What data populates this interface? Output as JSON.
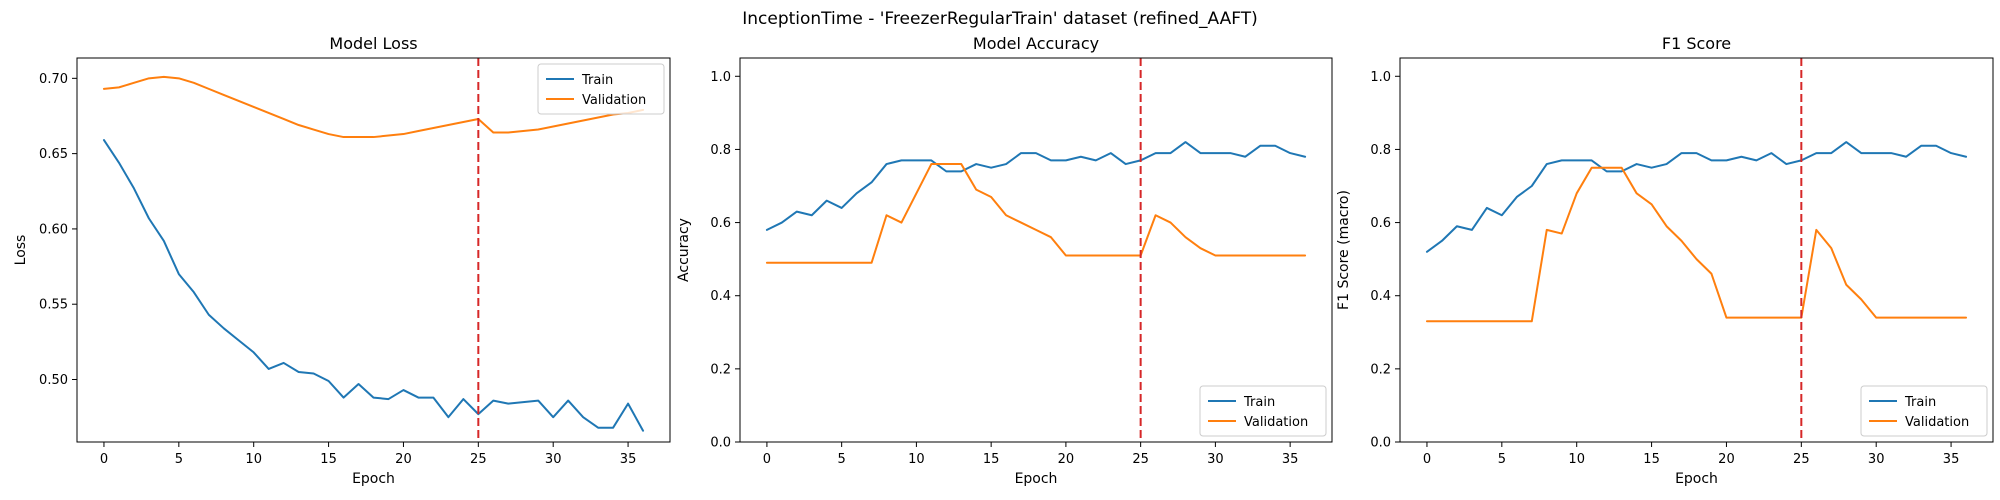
{
  "figure": {
    "suptitle": "InceptionTime - 'FreezerRegularTrain' dataset (refined_AAFT)"
  },
  "colors": {
    "train": "#1f77b4",
    "validation": "#ff7f0e",
    "marker": "#d62728"
  },
  "chart_data": [
    {
      "type": "line",
      "title": "Model Loss",
      "xlabel": "Epoch",
      "ylabel": "Loss",
      "xlim": [
        -1.8,
        37.8
      ],
      "ylim": [
        0.4585,
        0.7135
      ],
      "xticks": [
        0,
        5,
        10,
        15,
        20,
        25,
        30,
        35
      ],
      "yticks": [
        0.5,
        0.55,
        0.6,
        0.65,
        0.7
      ],
      "ytick_labels": [
        "0.50",
        "0.55",
        "0.60",
        "0.65",
        "0.70"
      ],
      "legend_position": "top-right",
      "vline_x": 25,
      "x": [
        0,
        1,
        2,
        3,
        4,
        5,
        6,
        7,
        8,
        9,
        10,
        11,
        12,
        13,
        14,
        15,
        16,
        17,
        18,
        19,
        20,
        21,
        22,
        23,
        24,
        25,
        26,
        27,
        28,
        29,
        30,
        31,
        32,
        33,
        34,
        35,
        36
      ],
      "series": [
        {
          "name": "Train",
          "color_key": "train",
          "values": [
            0.659,
            0.644,
            0.627,
            0.607,
            0.592,
            0.57,
            0.558,
            0.543,
            0.534,
            0.526,
            0.518,
            0.507,
            0.511,
            0.505,
            0.504,
            0.499,
            0.488,
            0.497,
            0.488,
            0.487,
            0.493,
            0.488,
            0.488,
            0.475,
            0.487,
            0.477,
            0.486,
            0.484,
            0.485,
            0.486,
            0.475,
            0.486,
            0.475,
            0.468,
            0.468,
            0.484,
            0.466
          ]
        },
        {
          "name": "Validation",
          "color_key": "validation",
          "values": [
            0.693,
            0.694,
            0.697,
            0.7,
            0.701,
            0.7,
            0.697,
            0.693,
            0.689,
            0.685,
            0.681,
            0.677,
            0.673,
            0.669,
            0.666,
            0.663,
            0.661,
            0.661,
            0.661,
            0.662,
            0.663,
            0.665,
            0.667,
            0.669,
            0.671,
            0.673,
            0.664,
            0.664,
            0.665,
            0.666,
            0.668,
            0.67,
            0.672,
            0.674,
            0.676,
            0.677,
            0.679
          ]
        }
      ]
    },
    {
      "type": "line",
      "title": "Model Accuracy",
      "xlabel": "Epoch",
      "ylabel": "Accuracy",
      "xlim": [
        -1.8,
        37.8
      ],
      "ylim": [
        0.0,
        1.05
      ],
      "xticks": [
        0,
        5,
        10,
        15,
        20,
        25,
        30,
        35
      ],
      "yticks": [
        0.0,
        0.2,
        0.4,
        0.6,
        0.8,
        1.0
      ],
      "ytick_labels": [
        "0.0",
        "0.2",
        "0.4",
        "0.6",
        "0.8",
        "1.0"
      ],
      "legend_position": "bottom-right",
      "vline_x": 25,
      "x": [
        0,
        1,
        2,
        3,
        4,
        5,
        6,
        7,
        8,
        9,
        10,
        11,
        12,
        13,
        14,
        15,
        16,
        17,
        18,
        19,
        20,
        21,
        22,
        23,
        24,
        25,
        26,
        27,
        28,
        29,
        30,
        31,
        32,
        33,
        34,
        35,
        36
      ],
      "series": [
        {
          "name": "Train",
          "color_key": "train",
          "values": [
            0.58,
            0.6,
            0.63,
            0.62,
            0.66,
            0.64,
            0.68,
            0.71,
            0.76,
            0.77,
            0.77,
            0.77,
            0.74,
            0.74,
            0.76,
            0.75,
            0.76,
            0.79,
            0.79,
            0.77,
            0.77,
            0.78,
            0.77,
            0.79,
            0.76,
            0.77,
            0.79,
            0.79,
            0.82,
            0.79,
            0.79,
            0.79,
            0.78,
            0.81,
            0.81,
            0.79,
            0.78
          ]
        },
        {
          "name": "Validation",
          "color_key": "validation",
          "values": [
            0.49,
            0.49,
            0.49,
            0.49,
            0.49,
            0.49,
            0.49,
            0.49,
            0.62,
            0.6,
            0.68,
            0.76,
            0.76,
            0.76,
            0.69,
            0.67,
            0.62,
            0.6,
            0.58,
            0.56,
            0.51,
            0.51,
            0.51,
            0.51,
            0.51,
            0.51,
            0.62,
            0.6,
            0.56,
            0.53,
            0.51,
            0.51,
            0.51,
            0.51,
            0.51,
            0.51,
            0.51
          ]
        }
      ]
    },
    {
      "type": "line",
      "title": "F1 Score",
      "xlabel": "Epoch",
      "ylabel": "F1 Score (macro)",
      "xlim": [
        -1.8,
        37.8
      ],
      "ylim": [
        0.0,
        1.05
      ],
      "xticks": [
        0,
        5,
        10,
        15,
        20,
        25,
        30,
        35
      ],
      "yticks": [
        0.0,
        0.2,
        0.4,
        0.6,
        0.8,
        1.0
      ],
      "ytick_labels": [
        "0.0",
        "0.2",
        "0.4",
        "0.6",
        "0.8",
        "1.0"
      ],
      "legend_position": "bottom-right",
      "vline_x": 25,
      "x": [
        0,
        1,
        2,
        3,
        4,
        5,
        6,
        7,
        8,
        9,
        10,
        11,
        12,
        13,
        14,
        15,
        16,
        17,
        18,
        19,
        20,
        21,
        22,
        23,
        24,
        25,
        26,
        27,
        28,
        29,
        30,
        31,
        32,
        33,
        34,
        35,
        36
      ],
      "series": [
        {
          "name": "Train",
          "color_key": "train",
          "values": [
            0.52,
            0.55,
            0.59,
            0.58,
            0.64,
            0.62,
            0.67,
            0.7,
            0.76,
            0.77,
            0.77,
            0.77,
            0.74,
            0.74,
            0.76,
            0.75,
            0.76,
            0.79,
            0.79,
            0.77,
            0.77,
            0.78,
            0.77,
            0.79,
            0.76,
            0.77,
            0.79,
            0.79,
            0.82,
            0.79,
            0.79,
            0.79,
            0.78,
            0.81,
            0.81,
            0.79,
            0.78
          ]
        },
        {
          "name": "Validation",
          "color_key": "validation",
          "values": [
            0.33,
            0.33,
            0.33,
            0.33,
            0.33,
            0.33,
            0.33,
            0.33,
            0.58,
            0.57,
            0.68,
            0.75,
            0.75,
            0.75,
            0.68,
            0.65,
            0.59,
            0.55,
            0.5,
            0.46,
            0.34,
            0.34,
            0.34,
            0.34,
            0.34,
            0.34,
            0.58,
            0.53,
            0.43,
            0.39,
            0.34,
            0.34,
            0.34,
            0.34,
            0.34,
            0.34,
            0.34
          ]
        }
      ]
    }
  ]
}
